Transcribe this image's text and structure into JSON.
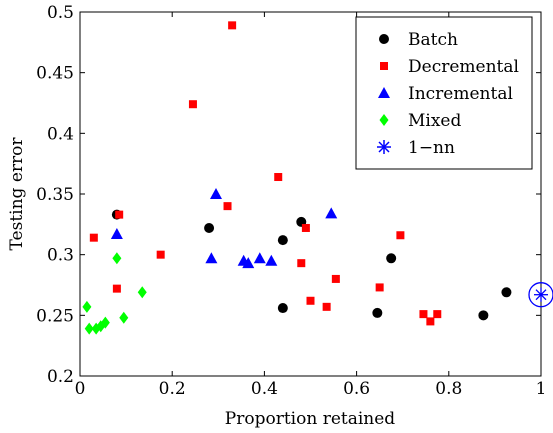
{
  "chart_data": {
    "type": "scatter",
    "xlabel": "Proportion retained",
    "ylabel": "Testing error",
    "xlim": [
      0,
      1
    ],
    "ylim": [
      0.2,
      0.5
    ],
    "grid": false,
    "legend_position": "top-right",
    "x_ticks": [
      0,
      0.2,
      0.4,
      0.6,
      0.8,
      1
    ],
    "x_tick_labels": [
      "0",
      "0.2",
      "0.4",
      "0.6",
      "0.8",
      "1"
    ],
    "y_ticks": [
      0.2,
      0.25,
      0.3,
      0.35,
      0.4,
      0.45,
      0.5
    ],
    "y_tick_labels": [
      "0.2",
      "0.25",
      "0.3",
      "0.35",
      "0.4",
      "0.45",
      "0.5"
    ],
    "series": [
      {
        "name": "Batch",
        "marker": "circle",
        "color": "#000000",
        "points": [
          [
            0.08,
            0.333
          ],
          [
            0.28,
            0.322
          ],
          [
            0.44,
            0.312
          ],
          [
            0.44,
            0.256
          ],
          [
            0.48,
            0.327
          ],
          [
            0.645,
            0.252
          ],
          [
            0.675,
            0.297
          ],
          [
            0.875,
            0.25
          ],
          [
            0.925,
            0.269
          ]
        ]
      },
      {
        "name": "Decremental",
        "marker": "square",
        "color": "#ff0000",
        "points": [
          [
            0.03,
            0.314
          ],
          [
            0.085,
            0.333
          ],
          [
            0.08,
            0.272
          ],
          [
            0.175,
            0.3
          ],
          [
            0.245,
            0.424
          ],
          [
            0.32,
            0.34
          ],
          [
            0.33,
            0.489
          ],
          [
            0.43,
            0.364
          ],
          [
            0.49,
            0.322
          ],
          [
            0.48,
            0.293
          ],
          [
            0.5,
            0.262
          ],
          [
            0.535,
            0.257
          ],
          [
            0.555,
            0.28
          ],
          [
            0.65,
            0.273
          ],
          [
            0.695,
            0.316
          ],
          [
            0.745,
            0.251
          ],
          [
            0.76,
            0.245
          ],
          [
            0.775,
            0.251
          ]
        ]
      },
      {
        "name": "Incremental",
        "marker": "triangle",
        "color": "#0000ff",
        "points": [
          [
            0.08,
            0.317
          ],
          [
            0.285,
            0.297
          ],
          [
            0.295,
            0.35
          ],
          [
            0.355,
            0.295
          ],
          [
            0.365,
            0.293
          ],
          [
            0.39,
            0.297
          ],
          [
            0.415,
            0.295
          ],
          [
            0.545,
            0.334
          ]
        ]
      },
      {
        "name": "Mixed",
        "marker": "diamond",
        "color": "#00ff00",
        "points": [
          [
            0.015,
            0.257
          ],
          [
            0.02,
            0.239
          ],
          [
            0.035,
            0.239
          ],
          [
            0.045,
            0.241
          ],
          [
            0.055,
            0.244
          ],
          [
            0.08,
            0.297
          ],
          [
            0.095,
            0.248
          ],
          [
            0.135,
            0.269
          ]
        ]
      },
      {
        "name": "1−nn",
        "marker": "asterisk-circled",
        "color": "#0000ff",
        "points": [
          [
            1.0,
            0.267
          ]
        ]
      }
    ]
  }
}
